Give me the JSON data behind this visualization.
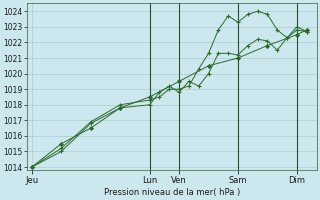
{
  "title": "Pression niveau de la mer( hPa )",
  "bg_color": "#cce8ee",
  "grid_color": "#aacccc",
  "line_color": "#2d6a2d",
  "vline_color": "#2d4d2d",
  "ylim": [
    1013.8,
    1024.5
  ],
  "yticks": [
    1014,
    1015,
    1016,
    1017,
    1018,
    1019,
    1020,
    1021,
    1022,
    1023,
    1024
  ],
  "day_labels": [
    "Jeu",
    "Lun",
    "Ven",
    "Sam",
    "Dim"
  ],
  "day_positions": [
    0,
    48,
    60,
    84,
    108
  ],
  "xlim": [
    -2,
    116
  ],
  "vline_positions": [
    48,
    60,
    84,
    108
  ],
  "line1_x": [
    0,
    12,
    24,
    36,
    48,
    52,
    56,
    60,
    64,
    68,
    72,
    76,
    80,
    84,
    88,
    92,
    96,
    100,
    104,
    108,
    112
  ],
  "line1_y": [
    1014.0,
    1015.0,
    1016.8,
    1017.8,
    1018.0,
    1018.8,
    1019.2,
    1018.8,
    1019.5,
    1019.2,
    1020.0,
    1021.3,
    1021.3,
    1021.2,
    1021.8,
    1022.2,
    1022.1,
    1021.5,
    1022.3,
    1022.8,
    1022.7
  ],
  "line2_x": [
    0,
    12,
    24,
    36,
    48,
    52,
    56,
    60,
    64,
    68,
    72,
    76,
    80,
    84,
    88,
    92,
    96,
    100,
    104,
    108,
    112
  ],
  "line2_y": [
    1014.0,
    1015.2,
    1016.9,
    1018.0,
    1018.3,
    1018.5,
    1019.0,
    1019.0,
    1019.2,
    1020.3,
    1021.3,
    1022.8,
    1023.7,
    1023.3,
    1023.8,
    1024.0,
    1023.8,
    1022.8,
    1022.3,
    1023.0,
    1022.7
  ],
  "line3_x": [
    0,
    12,
    24,
    36,
    48,
    60,
    72,
    84,
    96,
    108,
    112
  ],
  "line3_y": [
    1014.0,
    1015.5,
    1016.5,
    1017.8,
    1018.5,
    1019.5,
    1020.5,
    1021.0,
    1021.8,
    1022.5,
    1022.8
  ],
  "ylabel_fontsize": 6.0,
  "ytick_fontsize": 5.5,
  "xtick_fontsize": 6.0
}
